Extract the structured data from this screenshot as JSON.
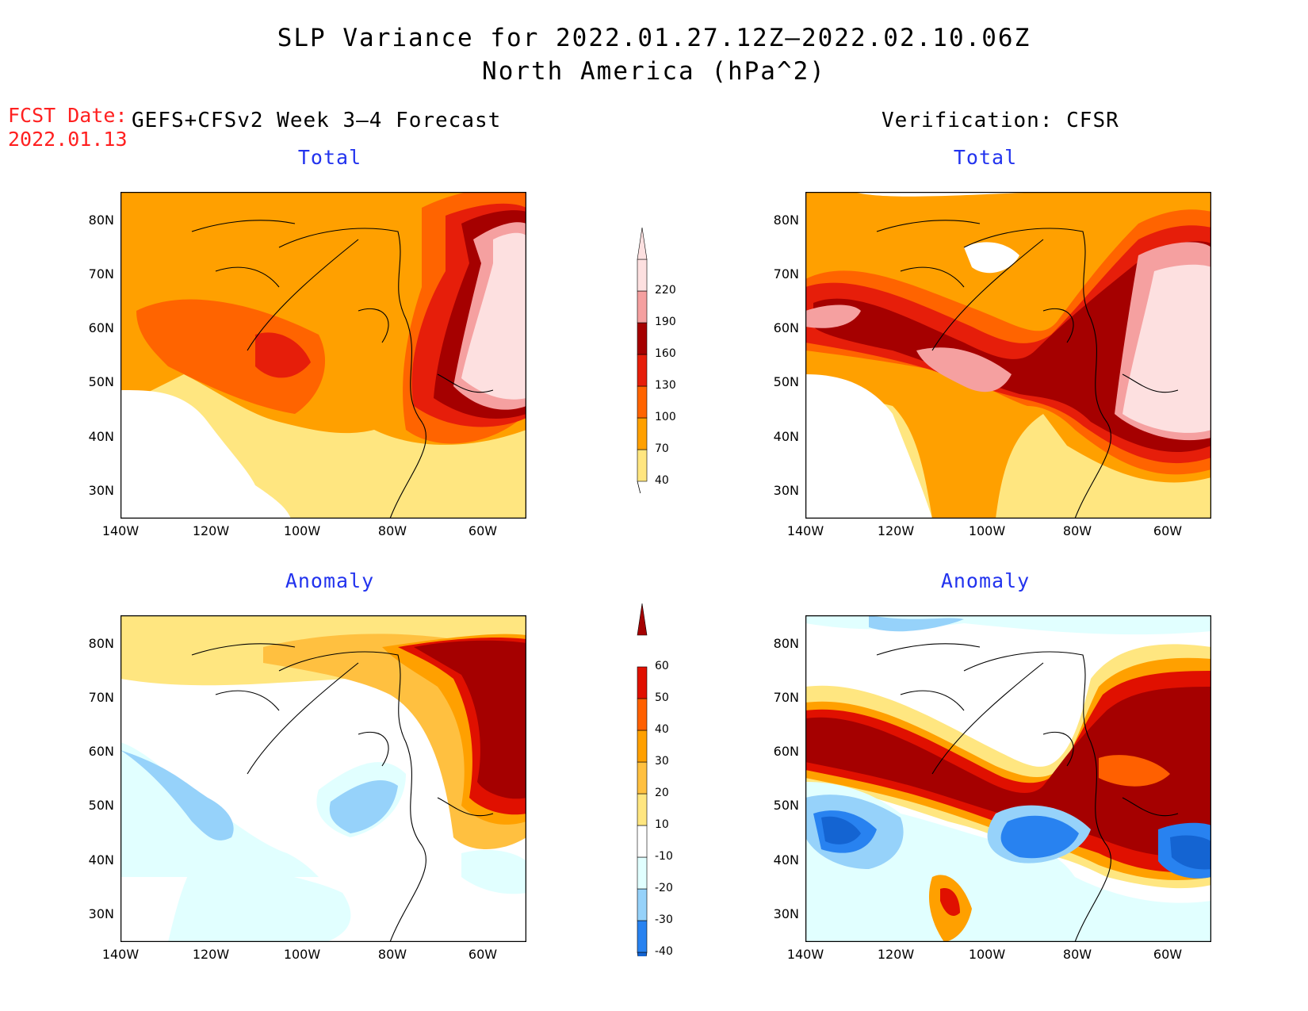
{
  "title_line1": "SLP Variance for 2022.01.27.12Z–2022.02.10.06Z",
  "title_line2": "North America (hPa^2)",
  "fcst_label": "FCST Date:",
  "fcst_date": "2022.01.13",
  "left_header": "GEFS+CFSv2 Week 3–4 Forecast",
  "right_header": "Verification: CFSR",
  "panels": {
    "fc_total": "Total",
    "ver_total": "Total",
    "fc_anom": "Anomaly",
    "ver_anom": "Anomaly"
  },
  "axes": {
    "lat_labels": [
      "80N",
      "70N",
      "60N",
      "50N",
      "40N",
      "30N"
    ],
    "lon_labels": [
      "140W",
      "120W",
      "100W",
      "80W",
      "60W"
    ]
  },
  "total_scale": {
    "levels": [
      "40",
      "70",
      "100",
      "130",
      "160",
      "190",
      "220"
    ],
    "colors": [
      "#ffe680",
      "#ffa000",
      "#ff6400",
      "#e61e0a",
      "#a50000",
      "#f5a0a0",
      "#fde0e0"
    ]
  },
  "anomaly_scale": {
    "levels": [
      "-40",
      "-30",
      "-20",
      "-10",
      "10",
      "20",
      "30",
      "40",
      "50",
      "60"
    ],
    "colors": [
      "#1464d2",
      "#2882f0",
      "#96d2fa",
      "#e1ffff",
      "#ffffff",
      "#ffe680",
      "#ffc040",
      "#ffa000",
      "#ff6000",
      "#e01000",
      "#a50000"
    ]
  }
}
